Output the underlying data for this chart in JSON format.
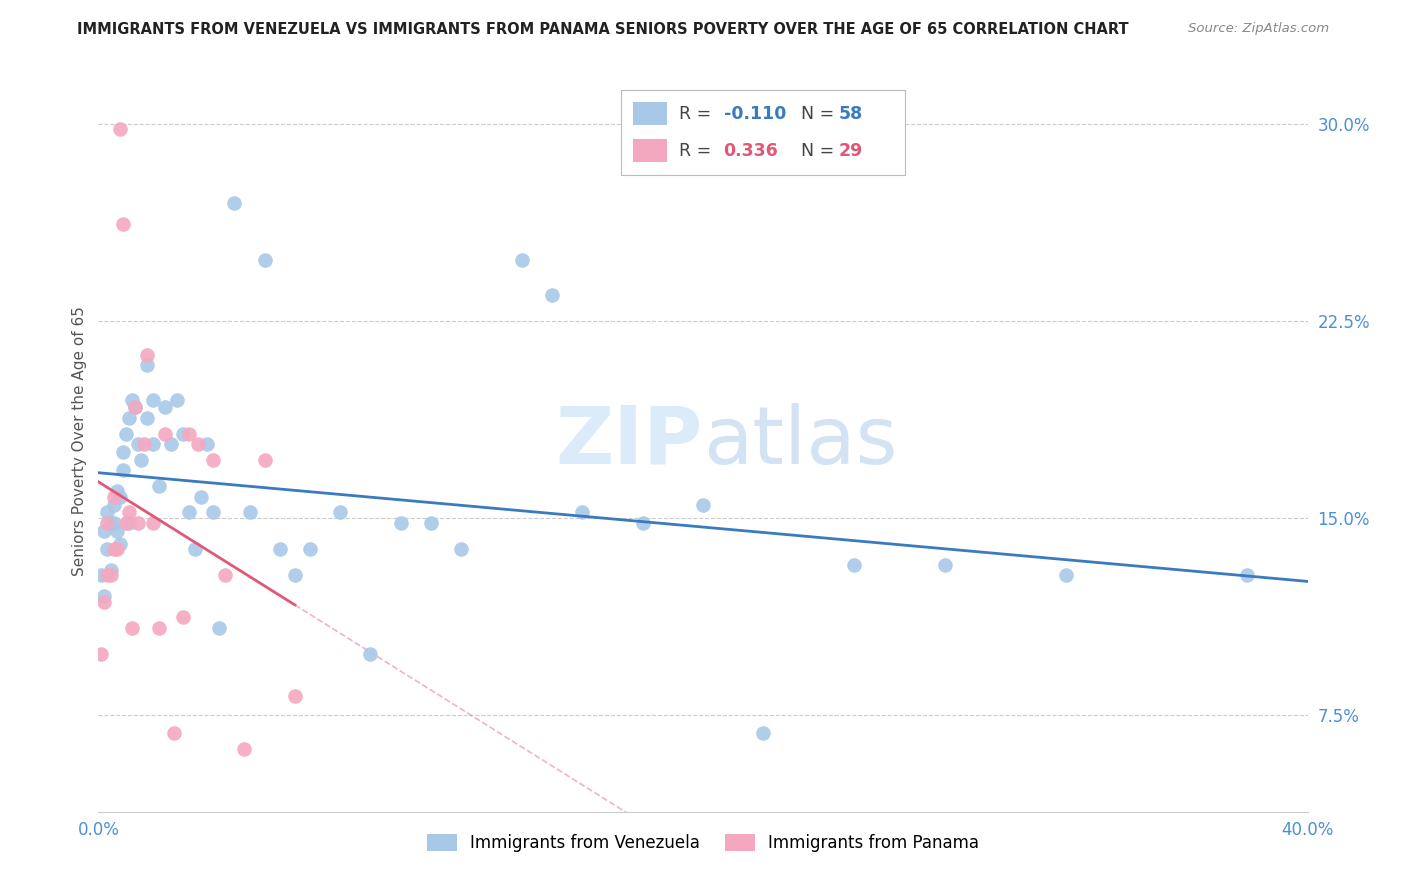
{
  "title": "IMMIGRANTS FROM VENEZUELA VS IMMIGRANTS FROM PANAMA SENIORS POVERTY OVER THE AGE OF 65 CORRELATION CHART",
  "source": "Source: ZipAtlas.com",
  "ylabel": "Seniors Poverty Over the Age of 65",
  "yticks": [
    "7.5%",
    "15.0%",
    "22.5%",
    "30.0%"
  ],
  "ytick_vals": [
    0.075,
    0.15,
    0.225,
    0.3
  ],
  "xlim": [
    0.0,
    0.4
  ],
  "ylim": [
    0.038,
    0.32
  ],
  "r_venezuela": -0.11,
  "n_venezuela": 58,
  "r_panama": 0.336,
  "n_panama": 29,
  "color_venezuela": "#a8c8e8",
  "color_panama": "#f4a8c0",
  "line_color_venezuela": "#3a7abf",
  "line_color_panama": "#e05878",
  "legend_label_venezuela": "Immigrants from Venezuela",
  "legend_label_panama": "Immigrants from Panama",
  "watermark": "ZIPatlas",
  "ven_x": [
    0.001,
    0.002,
    0.002,
    0.003,
    0.003,
    0.004,
    0.004,
    0.005,
    0.005,
    0.006,
    0.006,
    0.007,
    0.007,
    0.008,
    0.008,
    0.009,
    0.01,
    0.01,
    0.011,
    0.012,
    0.013,
    0.014,
    0.016,
    0.016,
    0.018,
    0.018,
    0.02,
    0.022,
    0.024,
    0.026,
    0.028,
    0.03,
    0.032,
    0.034,
    0.036,
    0.038,
    0.04,
    0.045,
    0.05,
    0.055,
    0.06,
    0.065,
    0.07,
    0.08,
    0.09,
    0.1,
    0.11,
    0.12,
    0.14,
    0.15,
    0.16,
    0.18,
    0.2,
    0.22,
    0.25,
    0.28,
    0.32,
    0.38
  ],
  "ven_y": [
    0.128,
    0.12,
    0.145,
    0.138,
    0.152,
    0.148,
    0.13,
    0.155,
    0.148,
    0.16,
    0.145,
    0.158,
    0.14,
    0.168,
    0.175,
    0.182,
    0.188,
    0.148,
    0.195,
    0.192,
    0.178,
    0.172,
    0.188,
    0.208,
    0.195,
    0.178,
    0.162,
    0.192,
    0.178,
    0.195,
    0.182,
    0.152,
    0.138,
    0.158,
    0.178,
    0.152,
    0.108,
    0.27,
    0.152,
    0.248,
    0.138,
    0.128,
    0.138,
    0.152,
    0.098,
    0.148,
    0.148,
    0.138,
    0.248,
    0.235,
    0.152,
    0.148,
    0.155,
    0.068,
    0.132,
    0.132,
    0.128,
    0.128
  ],
  "pan_x": [
    0.001,
    0.002,
    0.003,
    0.003,
    0.004,
    0.005,
    0.005,
    0.006,
    0.007,
    0.008,
    0.009,
    0.01,
    0.011,
    0.012,
    0.013,
    0.015,
    0.016,
    0.018,
    0.02,
    0.022,
    0.025,
    0.028,
    0.03,
    0.033,
    0.038,
    0.042,
    0.048,
    0.055,
    0.065
  ],
  "pan_y": [
    0.098,
    0.118,
    0.128,
    0.148,
    0.128,
    0.138,
    0.158,
    0.138,
    0.298,
    0.262,
    0.148,
    0.152,
    0.108,
    0.192,
    0.148,
    0.178,
    0.212,
    0.148,
    0.108,
    0.182,
    0.068,
    0.112,
    0.182,
    0.178,
    0.172,
    0.128,
    0.062,
    0.172,
    0.082
  ]
}
